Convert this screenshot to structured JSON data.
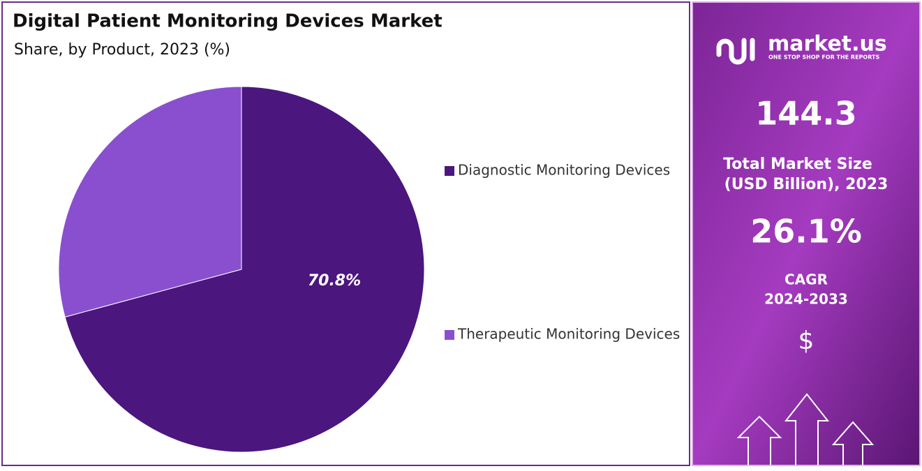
{
  "chart_data": {
    "type": "pie",
    "title": "Digital Patient Monitoring Devices Market",
    "subtitle": "Share, by Product, 2023 (%)",
    "categories": [
      "Diagnostic Monitoring Devices",
      "Therapeutic Monitoring Devices"
    ],
    "values": [
      70.8,
      29.2
    ],
    "value_labels": [
      "70.8%",
      null
    ],
    "colors": [
      "#4b167e",
      "#8a4fcf"
    ],
    "legend": "right"
  },
  "panel": {
    "brand": "market.us",
    "tagline": "ONE STOP SHOP FOR THE REPORTS",
    "market_size": "144.3",
    "market_size_label": [
      "Total Market Size",
      "(USD Billion), 2023"
    ],
    "cagr": "26.1%",
    "cagr_label": [
      "CAGR",
      "2024-2033"
    ],
    "currency": "$"
  }
}
